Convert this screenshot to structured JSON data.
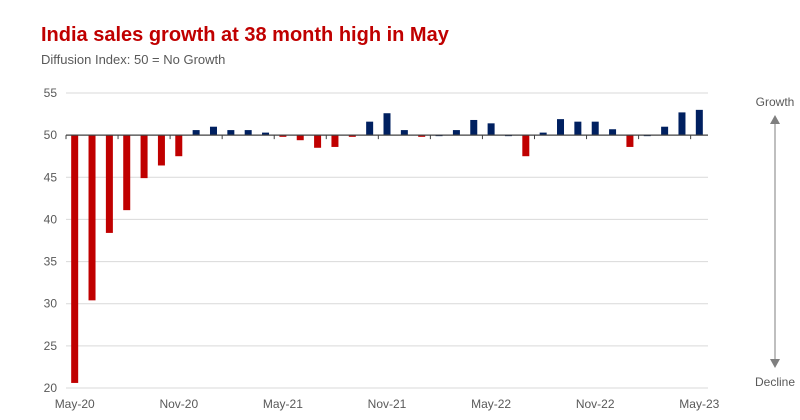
{
  "header": {
    "title": "India sales growth at 38 month high in May",
    "subtitle": "Diffusion Index: 50 = No Growth"
  },
  "side_arrow": {
    "top_label": "Growth",
    "bottom_label": "Decline"
  },
  "chart_data": {
    "type": "bar",
    "title": "India sales growth at 38 month high in May",
    "subtitle": "Diffusion Index: 50 = No Growth",
    "baseline": 50,
    "ylim": [
      20,
      55
    ],
    "yticks": [
      20,
      25,
      30,
      35,
      40,
      45,
      50,
      55
    ],
    "grid": true,
    "xlabel": "",
    "ylabel": "",
    "x_tick_labels": [
      "May-20",
      "Nov-20",
      "May-21",
      "Nov-21",
      "May-22",
      "Nov-22",
      "May-23"
    ],
    "colors": {
      "above": "#002060",
      "below": "#c00000",
      "title": "#c00000"
    },
    "categories": [
      "May-20",
      "Jun-20",
      "Jul-20",
      "Aug-20",
      "Sep-20",
      "Oct-20",
      "Nov-20",
      "Dec-20",
      "Jan-21",
      "Feb-21",
      "Mar-21",
      "Apr-21",
      "May-21",
      "Jun-21",
      "Jul-21",
      "Aug-21",
      "Sep-21",
      "Oct-21",
      "Nov-21",
      "Dec-21",
      "Jan-22",
      "Feb-22",
      "Mar-22",
      "Apr-22",
      "May-22",
      "Jun-22",
      "Jul-22",
      "Aug-22",
      "Sep-22",
      "Oct-22",
      "Nov-22",
      "Dec-22",
      "Jan-23",
      "Feb-23",
      "Mar-23",
      "Apr-23",
      "May-23"
    ],
    "values": [
      20.6,
      30.4,
      38.4,
      41.1,
      44.9,
      46.4,
      47.5,
      50.6,
      51.0,
      50.6,
      50.6,
      50.3,
      49.8,
      49.4,
      48.5,
      48.6,
      49.8,
      51.6,
      52.6,
      50.6,
      49.8,
      50.0,
      50.6,
      51.8,
      51.4,
      50.0,
      47.5,
      50.3,
      51.9,
      51.6,
      51.6,
      50.7,
      48.6,
      50.0,
      51.0,
      52.7,
      53.0
    ]
  }
}
